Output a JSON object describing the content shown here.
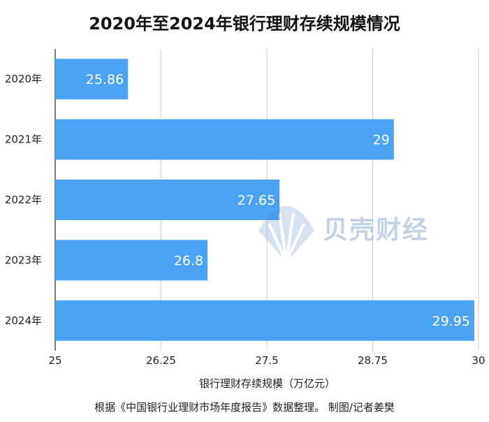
{
  "chart_data": {
    "type": "bar",
    "orientation": "horizontal",
    "title": "2020年至2024年银行理财存续规模情况",
    "xlabel": "银行理财存续规模（万亿元）",
    "ylabel": "",
    "categories": [
      "2020年",
      "2021年",
      "2022年",
      "2023年",
      "2024年"
    ],
    "values": [
      25.86,
      29,
      27.65,
      26.8,
      29.95
    ],
    "value_labels": [
      "25.86",
      "29",
      "27.65",
      "26.8",
      "29.95"
    ],
    "xlim": [
      25,
      30
    ],
    "xticks": [
      25,
      26.25,
      27.5,
      28.75,
      30
    ],
    "xtick_labels": [
      "25",
      "26.25",
      "27.5",
      "28.75",
      "30"
    ],
    "grid": "vertical",
    "bar_color": "#4aa3f5",
    "label_color": "#ffffff"
  },
  "source": "根据《中国银行业理财市场年度报告》数据整理。 制图/记者姜樊",
  "watermark": {
    "text": "贝壳财经",
    "color": "#7a9cc6"
  }
}
